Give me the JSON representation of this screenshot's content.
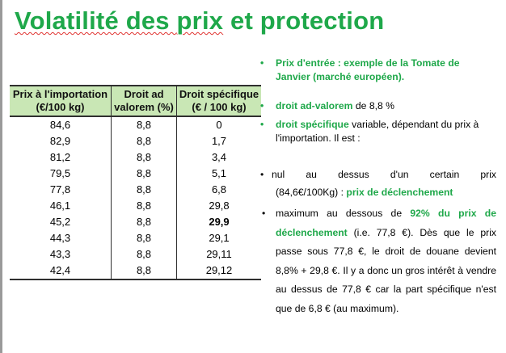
{
  "title": {
    "part1": "Volatilité des ",
    "part2": "prix",
    "part3": " et protection"
  },
  "table": {
    "headers": [
      "Prix à l'importation (€/100 kg)",
      "Droit ad valorem (%)",
      "Droit spécifique (€ / 100 kg)"
    ],
    "rows": [
      [
        "84,6",
        "8,8",
        "0"
      ],
      [
        "82,9",
        "8,8",
        "1,7"
      ],
      [
        "81,2",
        "8,8",
        "3,4"
      ],
      [
        "79,5",
        "8,8",
        "5,1"
      ],
      [
        "77,8",
        "8,8",
        "6,8"
      ],
      [
        "46,1",
        "8,8",
        "29,8"
      ],
      [
        "45,2",
        "8,8",
        "29,9"
      ],
      [
        "44,3",
        "8,8",
        "29,1"
      ],
      [
        "43,3",
        "8,8",
        "29,11"
      ],
      [
        "42,4",
        "8,8",
        "29,12"
      ]
    ]
  },
  "bullets": {
    "b1": "Prix d'entrée : exemple de la Tomate de Janvier (marché européen).",
    "b2_green": "droit ad-valorem",
    "b2_rest": " de 8,8 %",
    "b3_green": "droit spécifique",
    "b3_rest": " variable, dépendant du prix à l'importation. Il est :",
    "b4_line1": "nul au dessus d'un certain prix",
    "b4_line2a": "(84,6€/100Kg) : ",
    "b4_line2b": "prix de déclenchement",
    "b5_a": "maximum au dessous de ",
    "b5_pct": "92% du prix de déclenchement",
    "b5_rest": " (i.e. 77,8 €). Dès que le prix passe sous 77,8 €, le droit de douane devient 8,8% + 29,8 €. Il y a donc un gros intérêt à vendre au dessus de 77,8 € car la part spécifique n'est que de 6,8 € (au maximum)."
  },
  "bullet_glyph": "•",
  "colors": {
    "accent_green": "#1fa84a",
    "header_fill": "#c9e7b5"
  }
}
